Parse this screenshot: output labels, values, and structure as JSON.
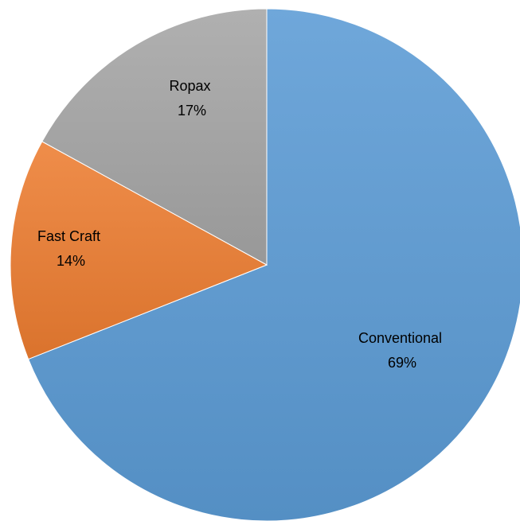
{
  "chart_data": {
    "type": "pie",
    "slices": [
      {
        "label": "Conventional",
        "value": 69,
        "percent_label": "69%",
        "color": "#5B9BD5"
      },
      {
        "label": "Fast Craft",
        "value": 14,
        "percent_label": "14%",
        "color": "#ED7D31"
      },
      {
        "label": "Ropax",
        "value": 17,
        "percent_label": "17%",
        "color": "#A5A5A5"
      }
    ],
    "start": "12 o'clock",
    "direction": "clockwise",
    "legend": "none",
    "data_labels": "category name and percentage"
  }
}
